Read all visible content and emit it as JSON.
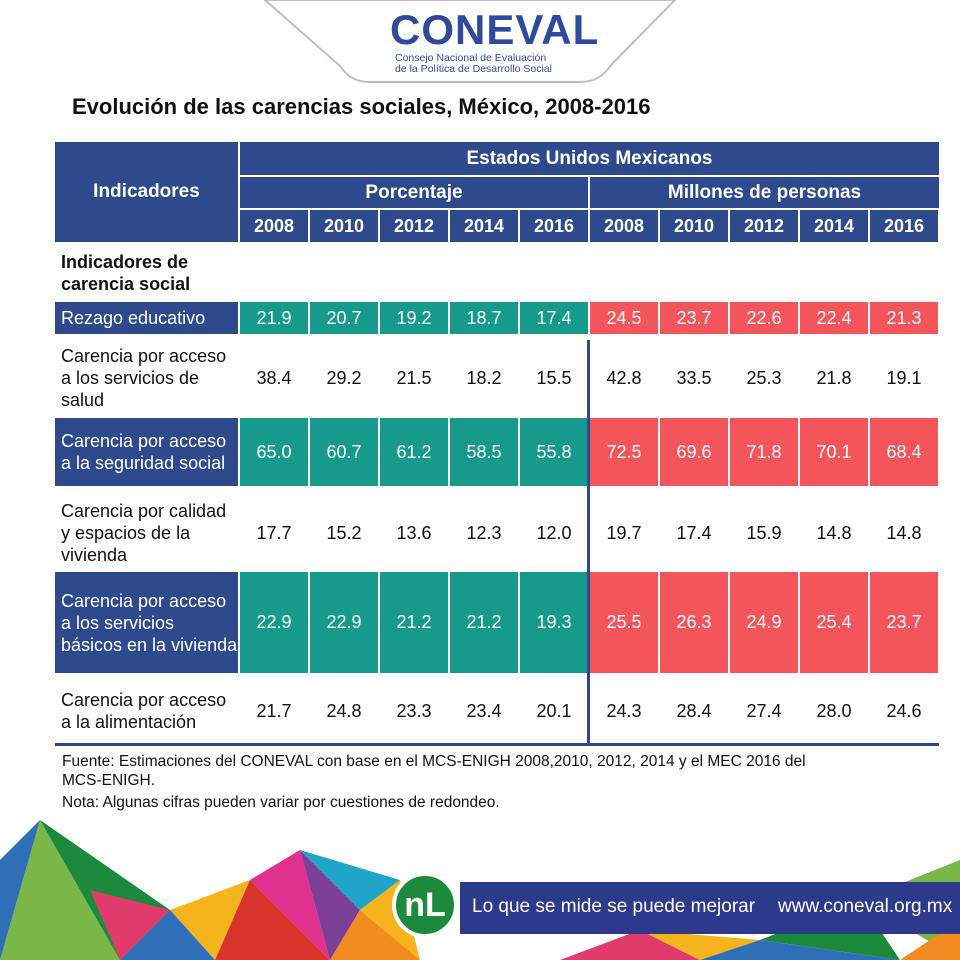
{
  "header": {
    "logo": "CONEVAL",
    "logo_subtitle_1": "Consejo Nacional de Evaluación",
    "logo_subtitle_2": "de la Política de Desarrollo Social"
  },
  "title": "Evolución de las carencias sociales, México, 2008-2016",
  "colors": {
    "header_blue": "#2f4a8c",
    "teal": "#159a8c",
    "red": "#f4555b"
  },
  "chart_data": {
    "type": "table",
    "title": "Evolución de las carencias sociales, México, 2008-2016",
    "headers": {
      "indicators": "Indicadores",
      "region": "Estados Unidos Mexicanos",
      "group_pct": "Porcentaje",
      "group_mil": "Millones de personas"
    },
    "years": [
      "2008",
      "2010",
      "2012",
      "2014",
      "2016"
    ],
    "section_label": "Indicadores de carencia social",
    "rows": [
      {
        "label": "Rezago educativo",
        "highlight": true,
        "pct": [
          "21.9",
          "20.7",
          "19.2",
          "18.7",
          "17.4"
        ],
        "mil": [
          "24.5",
          "23.7",
          "22.6",
          "22.4",
          "21.3"
        ]
      },
      {
        "label": "Carencia por acceso a los servicios de salud",
        "highlight": false,
        "pct": [
          "38.4",
          "29.2",
          "21.5",
          "18.2",
          "15.5"
        ],
        "mil": [
          "42.8",
          "33.5",
          "25.3",
          "21.8",
          "19.1"
        ]
      },
      {
        "label": "Carencia por acceso a la seguridad social",
        "highlight": true,
        "pct": [
          "65.0",
          "60.7",
          "61.2",
          "58.5",
          "55.8"
        ],
        "mil": [
          "72.5",
          "69.6",
          "71.8",
          "70.1",
          "68.4"
        ]
      },
      {
        "label": "Carencia por calidad y espacios de la vivienda",
        "highlight": false,
        "pct": [
          "17.7",
          "15.2",
          "13.6",
          "12.3",
          "12.0"
        ],
        "mil": [
          "19.7",
          "17.4",
          "15.9",
          "14.8",
          "14.8"
        ]
      },
      {
        "label": "Carencia por acceso a los servicios básicos en la vivienda",
        "highlight": true,
        "pct": [
          "22.9",
          "22.9",
          "21.2",
          "21.2",
          "19.3"
        ],
        "mil": [
          "25.5",
          "26.3",
          "24.9",
          "25.4",
          "23.7"
        ]
      },
      {
        "label": "Carencia por acceso a la alimentación",
        "highlight": false,
        "pct": [
          "21.7",
          "24.8",
          "23.3",
          "23.4",
          "20.1"
        ],
        "mil": [
          "24.3",
          "28.4",
          "27.4",
          "28.0",
          "24.6"
        ]
      }
    ]
  },
  "notes": {
    "source_line1": "Fuente: Estimaciones del CONEVAL con base en el MCS-ENIGH 2008,2010, 2012, 2014 y el MEC 2016 del",
    "source_line2": "MCS-ENIGH.",
    "note": "Nota: Algunas cifras pueden variar por cuestiones de redondeo."
  },
  "footer": {
    "badge": "nL",
    "slogan": "Lo que se mide se puede mejorar",
    "url": "www.coneval.org.mx"
  }
}
